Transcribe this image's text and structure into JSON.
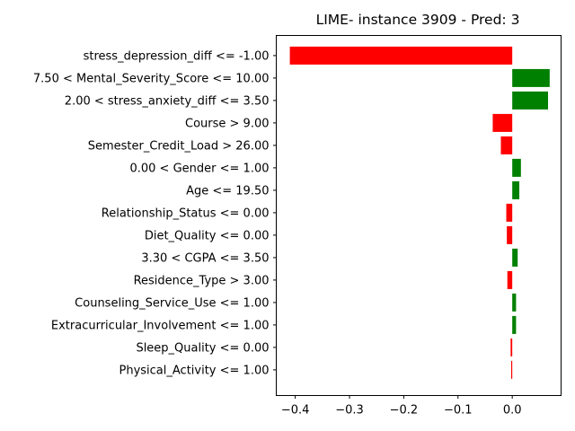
{
  "chart_data": {
    "type": "bar",
    "orientation": "horizontal",
    "title": "LIME- instance 3909 - Pred: 3",
    "xlabel": "",
    "ylabel": "",
    "xlim": [
      -0.435,
      0.09
    ],
    "xticks": [
      -0.4,
      -0.3,
      -0.2,
      -0.1,
      0.0
    ],
    "xtick_labels": [
      "−0.4",
      "−0.3",
      "−0.2",
      "−0.1",
      "0.0"
    ],
    "categories": [
      "stress_depression_diff <= -1.00",
      "7.50 < Mental_Severity_Score <= 10.00",
      "2.00 < stress_anxiety_diff <= 3.50",
      "Course > 9.00",
      "Semester_Credit_Load > 26.00",
      "0.00 < Gender <= 1.00",
      "Age <= 19.50",
      "Relationship_Status <= 0.00",
      "Diet_Quality <= 0.00",
      "3.30 < CGPA <= 3.50",
      "Residence_Type > 3.00",
      "Counseling_Service_Use <= 1.00",
      "Extracurricular_Involvement <= 1.00",
      "Sleep_Quality <= 0.00",
      "Physical_Activity <= 1.00"
    ],
    "values": [
      -0.41,
      0.069,
      0.066,
      -0.036,
      -0.021,
      0.016,
      0.013,
      -0.011,
      -0.01,
      0.01,
      -0.009,
      0.007,
      0.007,
      -0.003,
      -0.002
    ],
    "colors": {
      "positive": "#008000",
      "negative": "#ff0000"
    },
    "grid": false,
    "legend": "none"
  }
}
